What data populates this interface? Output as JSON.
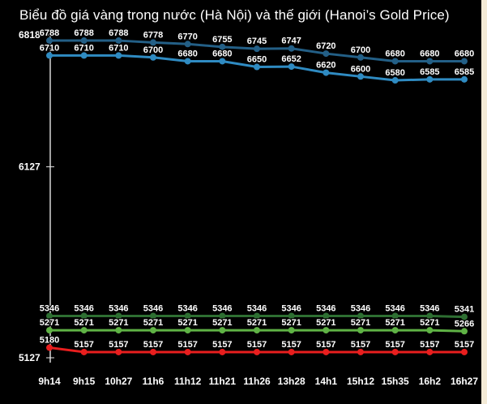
{
  "title": "Biểu đồ giá vàng trong nước (Hà Nội) và thế giới (Hanoi’s Gold Price)",
  "chart_data": {
    "type": "line",
    "title": "Biểu đồ giá vàng trong nước (Hà Nội) và thế giới (Hanoi’s Gold Price)",
    "xlabel": "",
    "ylabel": "",
    "categories": [
      "9h14",
      "9h15",
      "10h27",
      "11h6",
      "11h12",
      "11h21",
      "11h26",
      "13h28",
      "14h1",
      "15h12",
      "15h35",
      "16h2",
      "16h27"
    ],
    "y_ticks": [
      "6818",
      "6127",
      "5127"
    ],
    "ylim": [
      5127,
      6818
    ],
    "grid": false,
    "legend": "none",
    "series": [
      {
        "values": [
          6788,
          6788,
          6788,
          6778,
          6770,
          6755,
          6745,
          6747,
          6720,
          6700,
          6680,
          6680,
          6680
        ],
        "color": "#235f86"
      },
      {
        "values": [
          6710,
          6710,
          6710,
          6700,
          6680,
          6680,
          6650,
          6652,
          6620,
          6600,
          6580,
          6585,
          6585
        ],
        "color": "#2f8bc2"
      },
      {
        "values": [
          5346,
          5346,
          5346,
          5346,
          5346,
          5346,
          5346,
          5346,
          5346,
          5346,
          5346,
          5346,
          5341
        ],
        "color": "#2e6f32"
      },
      {
        "values": [
          5271,
          5271,
          5271,
          5271,
          5271,
          5271,
          5271,
          5271,
          5271,
          5271,
          5271,
          5271,
          5266
        ],
        "color": "#5fb245"
      },
      {
        "values": [
          5180,
          5157,
          5157,
          5157,
          5157,
          5157,
          5157,
          5157,
          5157,
          5157,
          5157,
          5157,
          5157
        ],
        "color": "#e81e1e"
      }
    ]
  }
}
